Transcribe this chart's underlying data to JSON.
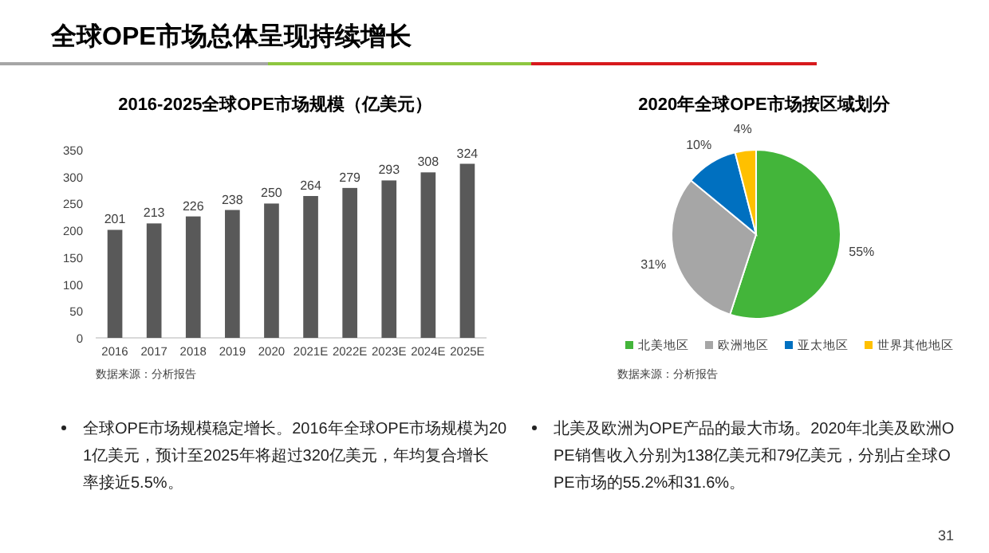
{
  "chart_data": [
    {
      "type": "bar",
      "title": "2016-2025全球OPE市场规模（亿美元）",
      "categories": [
        "2016",
        "2017",
        "2018",
        "2019",
        "2020",
        "2021E",
        "2022E",
        "2023E",
        "2024E",
        "2025E"
      ],
      "values": [
        201,
        213,
        226,
        238,
        250,
        264,
        279,
        293,
        308,
        324
      ],
      "color": "#595959",
      "ylim": [
        0,
        350
      ],
      "yticks": [
        0,
        50,
        100,
        150,
        200,
        250,
        300,
        350
      ],
      "data_labels": true,
      "annotations": [
        "全球OPE市场总体呈现持续增长",
        "数据来源：分析报告",
        "全球OPE市场规模稳定增长。2016年全球OPE市场规模为201亿美元，预计至2025年将超过320亿美元，年均复合增长率接近5.5%。",
        "31"
      ]
    },
    {
      "type": "pie",
      "title": "2020年全球OPE市场按区域划分",
      "categories": [
        "北美地区",
        "欧洲地区",
        "亚太地区",
        "世界其他地区"
      ],
      "values": [
        55,
        31,
        10,
        4
      ],
      "colors": [
        "#43b53a",
        "#a6a6a6",
        "#0070c0",
        "#ffc000"
      ],
      "value_labels": [
        "55%",
        "31%",
        "10%",
        "4%"
      ],
      "legend": "bottom",
      "annotations": [
        "数据来源：分析报告",
        "北美及欧洲为OPE产品的最大市场。2020年北美及欧洲OPE销售收入分别为138亿美元和79亿美元，分别占全球OPE市场的55.2%和31.6%。"
      ]
    }
  ]
}
